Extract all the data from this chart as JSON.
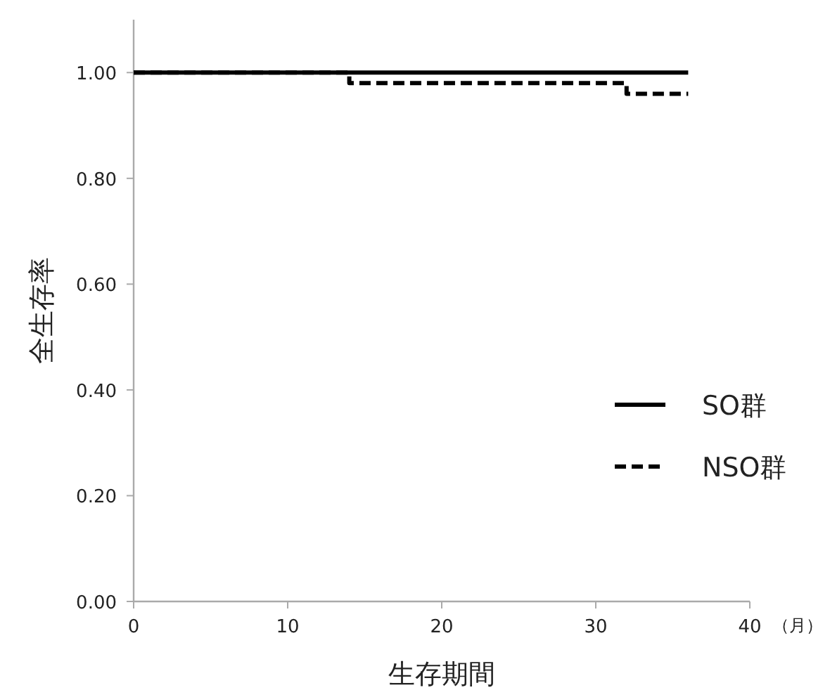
{
  "chart_data": {
    "type": "step",
    "xlabel": "生存期間",
    "ylabel": "全生存率",
    "annotations": [
      "（月）"
    ],
    "xlim": [
      0,
      40
    ],
    "xticks": [
      0,
      10,
      20,
      30,
      40
    ],
    "ylim": [
      0,
      1.1
    ],
    "yticks": [
      {
        "value": 0,
        "label": "0.00"
      },
      {
        "value": 0.2,
        "label": "0.20"
      },
      {
        "value": 0.4,
        "label": "0.40"
      },
      {
        "value": 0.6,
        "label": "0.60"
      },
      {
        "value": 0.8,
        "label": "0.80"
      },
      {
        "value": 1,
        "label": "1.00"
      }
    ],
    "grid": false,
    "legend": "right",
    "series": [
      {
        "name": "SO群",
        "color": "#000000",
        "line_style": "solid",
        "x": [
          0,
          36
        ],
        "values": [
          1,
          1
        ]
      },
      {
        "name": "NSO群",
        "color": "#000000",
        "line_style": "dashed",
        "x": [
          0,
          14,
          32,
          36
        ],
        "values": [
          1,
          0.98,
          0.96,
          0.96
        ]
      }
    ]
  }
}
